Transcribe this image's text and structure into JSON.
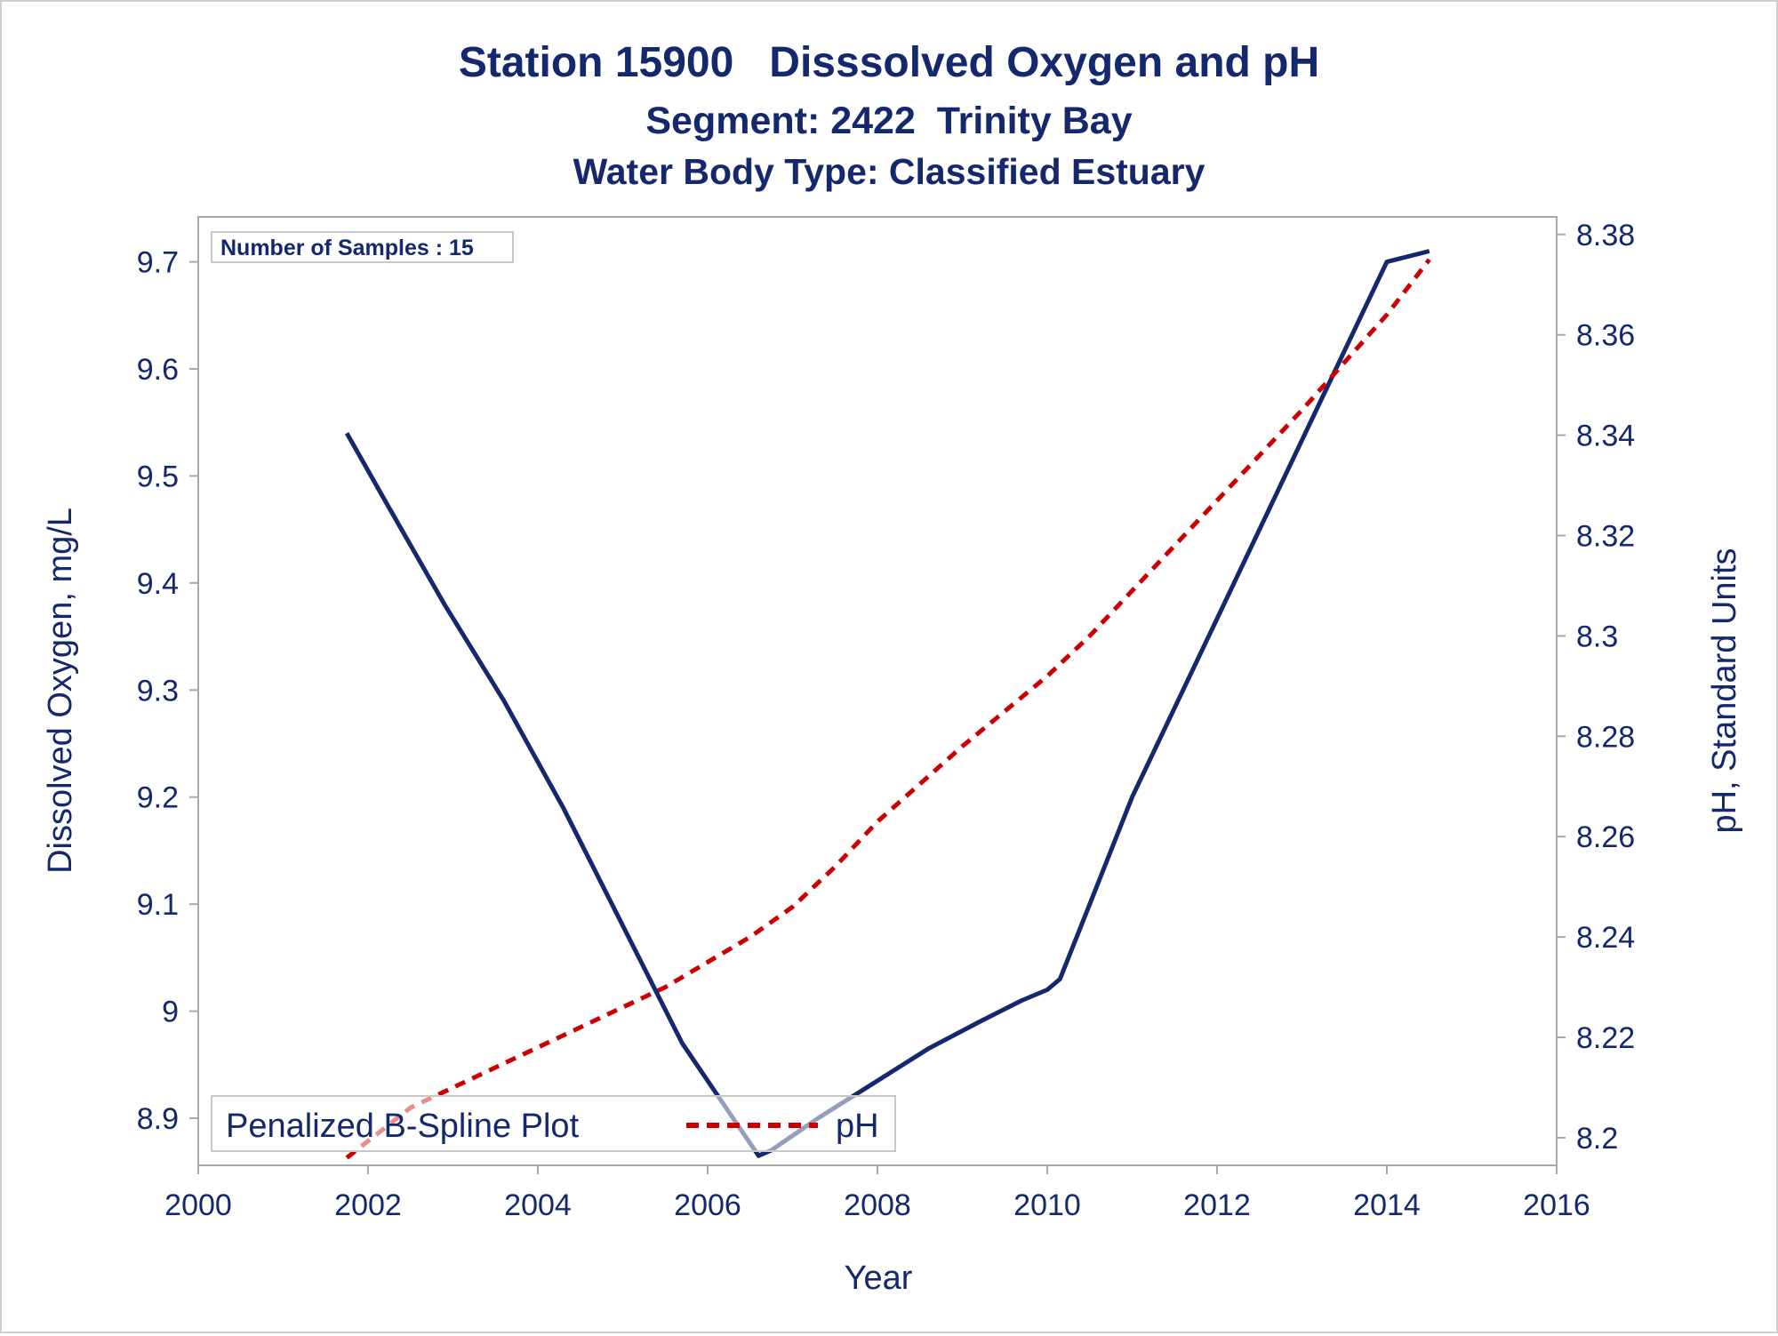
{
  "colors": {
    "text": "#14286e",
    "frame": "#a8a8a8",
    "do_line": "#14286e",
    "ph_line": "#cc0000"
  },
  "chart_data": {
    "type": "line",
    "title": "Station 15900   Disssolved Oxygen and pH",
    "subtitle": "Segment: 2422  Trinity Bay",
    "subtitle2": "Water Body Type: Classified Estuary",
    "xlabel": "Year",
    "ylabel": "Dissolved Oxygen, mg/L",
    "y2label": "pH, Standard Units",
    "xlim": [
      2000,
      2016
    ],
    "ylim": [
      8.856,
      9.742
    ],
    "y2lim": [
      8.1945,
      8.3835
    ],
    "xticks": [
      "2000",
      "2002",
      "2004",
      "2006",
      "2008",
      "2010",
      "2012",
      "2014",
      "2016"
    ],
    "yticks": [
      "8.9",
      "9",
      "9.1",
      "9.2",
      "9.3",
      "9.4",
      "9.5",
      "9.6",
      "9.7"
    ],
    "y2ticks": [
      "8.2",
      "8.22",
      "8.24",
      "8.26",
      "8.28",
      "8.3",
      "8.32",
      "8.34",
      "8.36",
      "8.38"
    ],
    "annotation": "Number of Samples : 15",
    "legend": {
      "position": "bottom-left",
      "entries": [
        "Penalized B-Spline Plot",
        "pH"
      ]
    },
    "series": [
      {
        "key": "do",
        "axis": "left",
        "style": "solid",
        "x": [
          2001.75,
          2002.25,
          2002.9,
          2003.6,
          2004.3,
          2005.0,
          2005.7,
          2006.3,
          2006.6,
          2006.75,
          2007.3,
          2008.0,
          2008.6,
          2009.2,
          2009.7,
          2010.0,
          2010.15,
          2010.5,
          2011.0,
          2011.6,
          2012.2,
          2012.8,
          2013.4,
          2014.0,
          2014.5
        ],
        "values": [
          9.54,
          9.47,
          9.38,
          9.29,
          9.19,
          9.08,
          8.97,
          8.9,
          8.865,
          8.87,
          8.9,
          8.935,
          8.965,
          8.99,
          9.01,
          9.02,
          9.03,
          9.1,
          9.2,
          9.3,
          9.4,
          9.5,
          9.6,
          9.7,
          9.71
        ]
      },
      {
        "name": "pH",
        "key": "ph",
        "axis": "right",
        "style": "dashed",
        "x": [
          2001.75,
          2002.5,
          2003.5,
          2004.5,
          2005.5,
          2006.5,
          2007.0,
          2007.5,
          2008.0,
          2009.0,
          2010.0,
          2010.5,
          2011.0,
          2012.0,
          2013.0,
          2014.0,
          2014.5
        ],
        "values": [
          8.196,
          8.206,
          8.214,
          8.222,
          8.23,
          8.24,
          8.246,
          8.254,
          8.263,
          8.278,
          8.292,
          8.3,
          8.309,
          8.327,
          8.345,
          8.364,
          8.375
        ]
      }
    ]
  }
}
